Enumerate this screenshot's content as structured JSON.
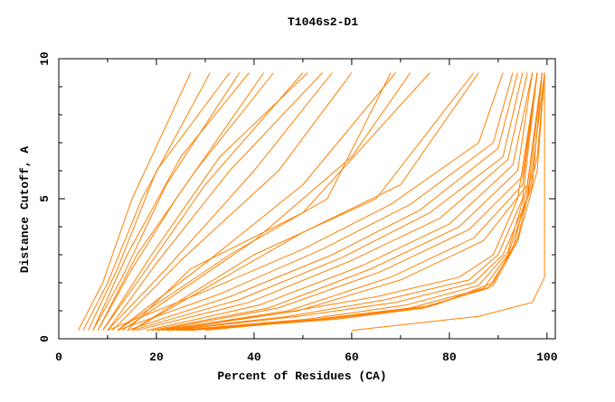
{
  "chart_data": {
    "type": "line",
    "title": "T1046s2-D1",
    "xlabel": "Percent of Residues (CA)",
    "ylabel": "Distance Cutoff, A",
    "xlim": [
      0,
      101.7
    ],
    "ylim": [
      0,
      10
    ],
    "xticks": [
      "0",
      "20",
      "40",
      "60",
      "80",
      "100"
    ],
    "yticks": [
      "0",
      "5",
      "10"
    ],
    "grid": false,
    "line_color": "#ff8000",
    "series": [
      {
        "points": [
          [
            4,
            0.3
          ],
          [
            9,
            2
          ],
          [
            15,
            5
          ],
          [
            27,
            9.5
          ]
        ]
      },
      {
        "points": [
          [
            5,
            0.3
          ],
          [
            10,
            2
          ],
          [
            17,
            5
          ],
          [
            31,
            9.5
          ]
        ]
      },
      {
        "points": [
          [
            6,
            0.3
          ],
          [
            12,
            2.5
          ],
          [
            20,
            6
          ],
          [
            35,
            9.5
          ]
        ]
      },
      {
        "points": [
          [
            7,
            0.3
          ],
          [
            13,
            2.2
          ],
          [
            22,
            5.5
          ],
          [
            37,
            9.5
          ]
        ]
      },
      {
        "points": [
          [
            7,
            0.3
          ],
          [
            14,
            3
          ],
          [
            25,
            6.5
          ],
          [
            39,
            9.5
          ]
        ]
      },
      {
        "points": [
          [
            8,
            0.3
          ],
          [
            15,
            2.5
          ],
          [
            24,
            5
          ],
          [
            42,
            9.5
          ]
        ]
      },
      {
        "points": [
          [
            8,
            0.3
          ],
          [
            16,
            3
          ],
          [
            28,
            6
          ],
          [
            44,
            9.5
          ]
        ]
      },
      {
        "points": [
          [
            9,
            0.3
          ],
          [
            18,
            2.5
          ],
          [
            30,
            5.5
          ],
          [
            50,
            9.5
          ]
        ]
      },
      {
        "points": [
          [
            9,
            0.3
          ],
          [
            19,
            3
          ],
          [
            33,
            6.5
          ],
          [
            51,
            9.5
          ]
        ]
      },
      {
        "points": [
          [
            10,
            0.3
          ],
          [
            20,
            2.7
          ],
          [
            35,
            6
          ],
          [
            54,
            9.5
          ]
        ]
      },
      {
        "points": [
          [
            10,
            0.3
          ],
          [
            22,
            2.5
          ],
          [
            40,
            6
          ],
          [
            56,
            9.5
          ]
        ]
      },
      {
        "points": [
          [
            11,
            0.3
          ],
          [
            25,
            2.8
          ],
          [
            45,
            6
          ],
          [
            60,
            9.5
          ]
        ]
      },
      {
        "points": [
          [
            12,
            0.3
          ],
          [
            30,
            2.7
          ],
          [
            50,
            5.5
          ],
          [
            69,
            9.5
          ]
        ]
      },
      {
        "points": [
          [
            12,
            0.3
          ],
          [
            35,
            3
          ],
          [
            55,
            5
          ],
          [
            68,
            9.5
          ]
        ]
      },
      {
        "points": [
          [
            13,
            0.3
          ],
          [
            40,
            3.5
          ],
          [
            60,
            6.5
          ],
          [
            72,
            9.5
          ]
        ]
      },
      {
        "points": [
          [
            14,
            0.3
          ],
          [
            27,
            2.5
          ],
          [
            50,
            4.5
          ],
          [
            76,
            9.5
          ]
        ]
      },
      {
        "points": [
          [
            15,
            0.3
          ],
          [
            40,
            3
          ],
          [
            65,
            5
          ],
          [
            85,
            9.5
          ]
        ]
      },
      {
        "points": [
          [
            15,
            0.3
          ],
          [
            50,
            3.8
          ],
          [
            70,
            5.5
          ],
          [
            86,
            9.5
          ]
        ]
      },
      {
        "points": [
          [
            10,
            0.3
          ],
          [
            30,
            1.7
          ],
          [
            50,
            3.2
          ],
          [
            68,
            4.8
          ],
          [
            86,
            7
          ],
          [
            91,
            9.5
          ]
        ]
      },
      {
        "points": [
          [
            12,
            0.3
          ],
          [
            33,
            1.6
          ],
          [
            54,
            3.2
          ],
          [
            72,
            4.8
          ],
          [
            89,
            7
          ],
          [
            93,
            9.5
          ]
        ]
      },
      {
        "points": [
          [
            14,
            0.3
          ],
          [
            35,
            1.5
          ],
          [
            56,
            3
          ],
          [
            74,
            4.6
          ],
          [
            90,
            6.8
          ],
          [
            94,
            9.5
          ]
        ]
      },
      {
        "points": [
          [
            15,
            0.3
          ],
          [
            37,
            1.4
          ],
          [
            58,
            2.9
          ],
          [
            76,
            4.5
          ],
          [
            91,
            6.5
          ],
          [
            95,
            9.5
          ]
        ]
      },
      {
        "points": [
          [
            16,
            0.3
          ],
          [
            39,
            1.3
          ],
          [
            60,
            2.8
          ],
          [
            78,
            4.3
          ],
          [
            92,
            6.4
          ],
          [
            96,
            9.5
          ]
        ]
      },
      {
        "points": [
          [
            18,
            0.3
          ],
          [
            41,
            1.2
          ],
          [
            62,
            2.6
          ],
          [
            80,
            4.1
          ],
          [
            93,
            6.2
          ],
          [
            97,
            9.5
          ]
        ]
      },
      {
        "points": [
          [
            19,
            0.3
          ],
          [
            43,
            1.1
          ],
          [
            64,
            2.5
          ],
          [
            82,
            4
          ],
          [
            94,
            6
          ],
          [
            97,
            9.5
          ]
        ]
      },
      {
        "points": [
          [
            20,
            0.3
          ],
          [
            45,
            1.1
          ],
          [
            66,
            2.4
          ],
          [
            84,
            3.9
          ],
          [
            95,
            5.8
          ],
          [
            98,
            9.5
          ]
        ]
      },
      {
        "points": [
          [
            21,
            0.3
          ],
          [
            47,
            1
          ],
          [
            68,
            2.2
          ],
          [
            85,
            3.6
          ],
          [
            95,
            5.5
          ],
          [
            98,
            9.5
          ]
        ]
      },
      {
        "points": [
          [
            22,
            0.3
          ],
          [
            49,
            1
          ],
          [
            70,
            2.1
          ],
          [
            87,
            3.5
          ],
          [
            96,
            5.5
          ],
          [
            99,
            9.5
          ]
        ]
      },
      {
        "points": [
          [
            20,
            0.3
          ],
          [
            45,
            0.9
          ],
          [
            65,
            1.5
          ],
          [
            82,
            2.2
          ],
          [
            89,
            3
          ],
          [
            94,
            5
          ],
          [
            98,
            9.5
          ]
        ]
      },
      {
        "points": [
          [
            22,
            0.3
          ],
          [
            47,
            0.8
          ],
          [
            67,
            1.4
          ],
          [
            84,
            2.1
          ],
          [
            90,
            3
          ],
          [
            95,
            5
          ],
          [
            98,
            9.5
          ]
        ]
      },
      {
        "points": [
          [
            23,
            0.3
          ],
          [
            49,
            0.8
          ],
          [
            69,
            1.3
          ],
          [
            85,
            2
          ],
          [
            91,
            3
          ],
          [
            96,
            5
          ],
          [
            99,
            9.5
          ]
        ]
      },
      {
        "points": [
          [
            24,
            0.3
          ],
          [
            51,
            0.7
          ],
          [
            71,
            1.2
          ],
          [
            86,
            1.9
          ],
          [
            92,
            3.1
          ],
          [
            96,
            5.5
          ],
          [
            99,
            9.5
          ]
        ]
      },
      {
        "points": [
          [
            25,
            0.3
          ],
          [
            53,
            0.7
          ],
          [
            72,
            1.1
          ],
          [
            87,
            1.8
          ],
          [
            92,
            3
          ],
          [
            97,
            5.5
          ],
          [
            99,
            9.5
          ]
        ]
      },
      {
        "points": [
          [
            26,
            0.3
          ],
          [
            55,
            0.7
          ],
          [
            74,
            1.1
          ],
          [
            88,
            1.8
          ],
          [
            93,
            3.2
          ],
          [
            97,
            6
          ],
          [
            99.5,
            9.5
          ]
        ]
      },
      {
        "points": [
          [
            27,
            0.3
          ],
          [
            57,
            0.7
          ],
          [
            75,
            1.1
          ],
          [
            89,
            1.9
          ],
          [
            94,
            3.5
          ],
          [
            98,
            6
          ],
          [
            99.5,
            9.5
          ]
        ]
      },
      {
        "points": [
          [
            30,
            0.3
          ],
          [
            59,
            0.8
          ],
          [
            77,
            1.2
          ],
          [
            89,
            2
          ],
          [
            94,
            3.6
          ],
          [
            98,
            6.5
          ],
          [
            99.5,
            9.5
          ]
        ]
      },
      {
        "points": [
          [
            60,
            0.3
          ],
          [
            86,
            0.8
          ],
          [
            97,
            1.3
          ],
          [
            99.5,
            2.2
          ],
          [
            99.5,
            9.5
          ]
        ]
      }
    ]
  }
}
